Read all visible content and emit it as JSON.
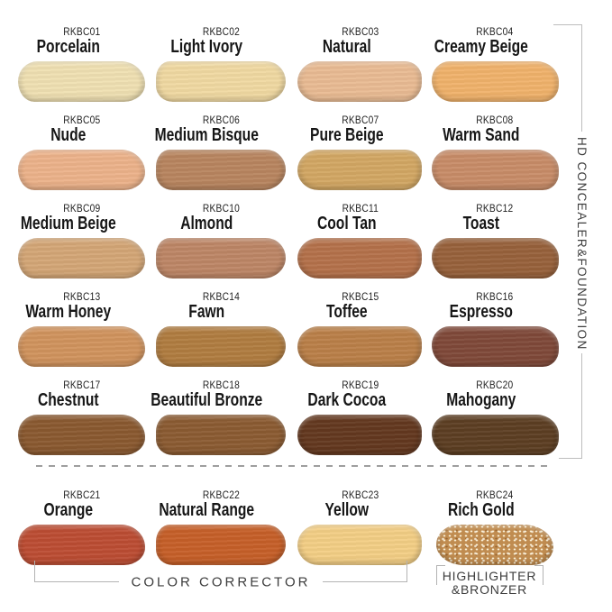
{
  "side_label": "HD CONCEALER&FOUNDATION",
  "footer": {
    "color_corrector": "COLOR CORRECTOR",
    "highlighter_line1": "HIGHLIGHTER",
    "highlighter_line2": "&BRONZER"
  },
  "accents": {
    "bracket_line_gray": "#bdbdbd",
    "dashed_line_gray": "#9e9e9e",
    "label_text_dark": "#1f1f1f",
    "group_label_gray": "#3d3d3d"
  },
  "swatches": [
    {
      "code": "RKBC01",
      "name": "Porcelain",
      "color": "#EFE0B2"
    },
    {
      "code": "RKBC02",
      "name": "Light Ivory",
      "color": "#F0D9A2"
    },
    {
      "code": "RKBC03",
      "name": "Natural",
      "color": "#E9BB93"
    },
    {
      "code": "RKBC04",
      "name": "Creamy Beige",
      "color": "#F0B26B"
    },
    {
      "code": "RKBC05",
      "name": "Nude",
      "color": "#ECB28A"
    },
    {
      "code": "RKBC06",
      "name": "Medium Bisque",
      "color": "#B8855F"
    },
    {
      "code": "RKBC07",
      "name": "Pure Beige",
      "color": "#D2A763"
    },
    {
      "code": "RKBC08",
      "name": "Warm Sand",
      "color": "#C88C68"
    },
    {
      "code": "RKBC09",
      "name": "Medium Beige",
      "color": "#D3A676"
    },
    {
      "code": "RKBC10",
      "name": "Almond",
      "color": "#BD8666"
    },
    {
      "code": "RKBC11",
      "name": "Cool Tan",
      "color": "#B4714A"
    },
    {
      "code": "RKBC12",
      "name": "Toast",
      "color": "#97613B"
    },
    {
      "code": "RKBC13",
      "name": "Warm Honey",
      "color": "#D0935D"
    },
    {
      "code": "RKBC14",
      "name": "Fawn",
      "color": "#B07C40"
    },
    {
      "code": "RKBC15",
      "name": "Toffee",
      "color": "#BA7F48"
    },
    {
      "code": "RKBC16",
      "name": "Espresso",
      "color": "#7F4939"
    },
    {
      "code": "RKBC17",
      "name": "Chestnut",
      "color": "#8A5930"
    },
    {
      "code": "RKBC18",
      "name": "Beautiful Bronze",
      "color": "#8B5B32"
    },
    {
      "code": "RKBC19",
      "name": "Dark Cocoa",
      "color": "#63381F"
    },
    {
      "code": "RKBC20",
      "name": "Mahogany",
      "color": "#5C3E22"
    },
    {
      "code": "RKBC21",
      "name": "Orange",
      "color": "#BC4D33"
    },
    {
      "code": "RKBC22",
      "name": "Natural Range",
      "color": "#C65F28"
    },
    {
      "code": "RKBC23",
      "name": "Yellow",
      "color": "#F3CE85"
    },
    {
      "code": "RKBC24",
      "name": "Rich Gold",
      "color": "#C08C50",
      "sparkle": true
    }
  ]
}
